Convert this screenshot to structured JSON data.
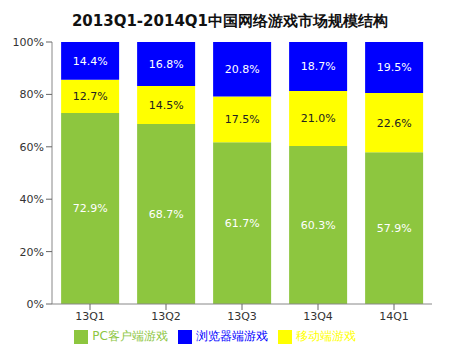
{
  "chart_data": {
    "type": "bar",
    "title": "2013Q1-2014Q1中国网络游戏市场规模结构",
    "stacked": true,
    "data_labels": true,
    "grid": false,
    "legend": "bottom",
    "categories": [
      "13Q1",
      "13Q2",
      "13Q3",
      "13Q4",
      "14Q1"
    ],
    "ylim": [
      0,
      100
    ],
    "yticks": [
      {
        "value": 0,
        "label": "0%"
      },
      {
        "value": 20,
        "label": "20%"
      },
      {
        "value": 40,
        "label": "40%"
      },
      {
        "value": 60,
        "label": "60%"
      },
      {
        "value": 80,
        "label": "80%"
      },
      {
        "value": 100,
        "label": "100%"
      }
    ],
    "series": [
      {
        "name": "PC客户端游戏",
        "color": "#8dc63f",
        "values": [
          72.9,
          68.7,
          61.7,
          60.3,
          57.9
        ],
        "value_labels": [
          "72.9%",
          "68.7%",
          "61.7%",
          "60.3%",
          "57.9%"
        ]
      },
      {
        "name": "移动端游戏",
        "color": "#ffff00",
        "values": [
          12.7,
          14.5,
          17.5,
          21.0,
          22.6
        ],
        "value_labels": [
          "12.7%",
          "14.5%",
          "17.5%",
          "21.0%",
          "22.6%"
        ]
      },
      {
        "name": "浏览器端游戏",
        "color": "#0000ff",
        "values": [
          14.4,
          16.8,
          20.8,
          18.7,
          19.5
        ],
        "value_labels": [
          "14.4%",
          "16.8%",
          "20.8%",
          "18.7%",
          "19.5%"
        ]
      }
    ]
  }
}
